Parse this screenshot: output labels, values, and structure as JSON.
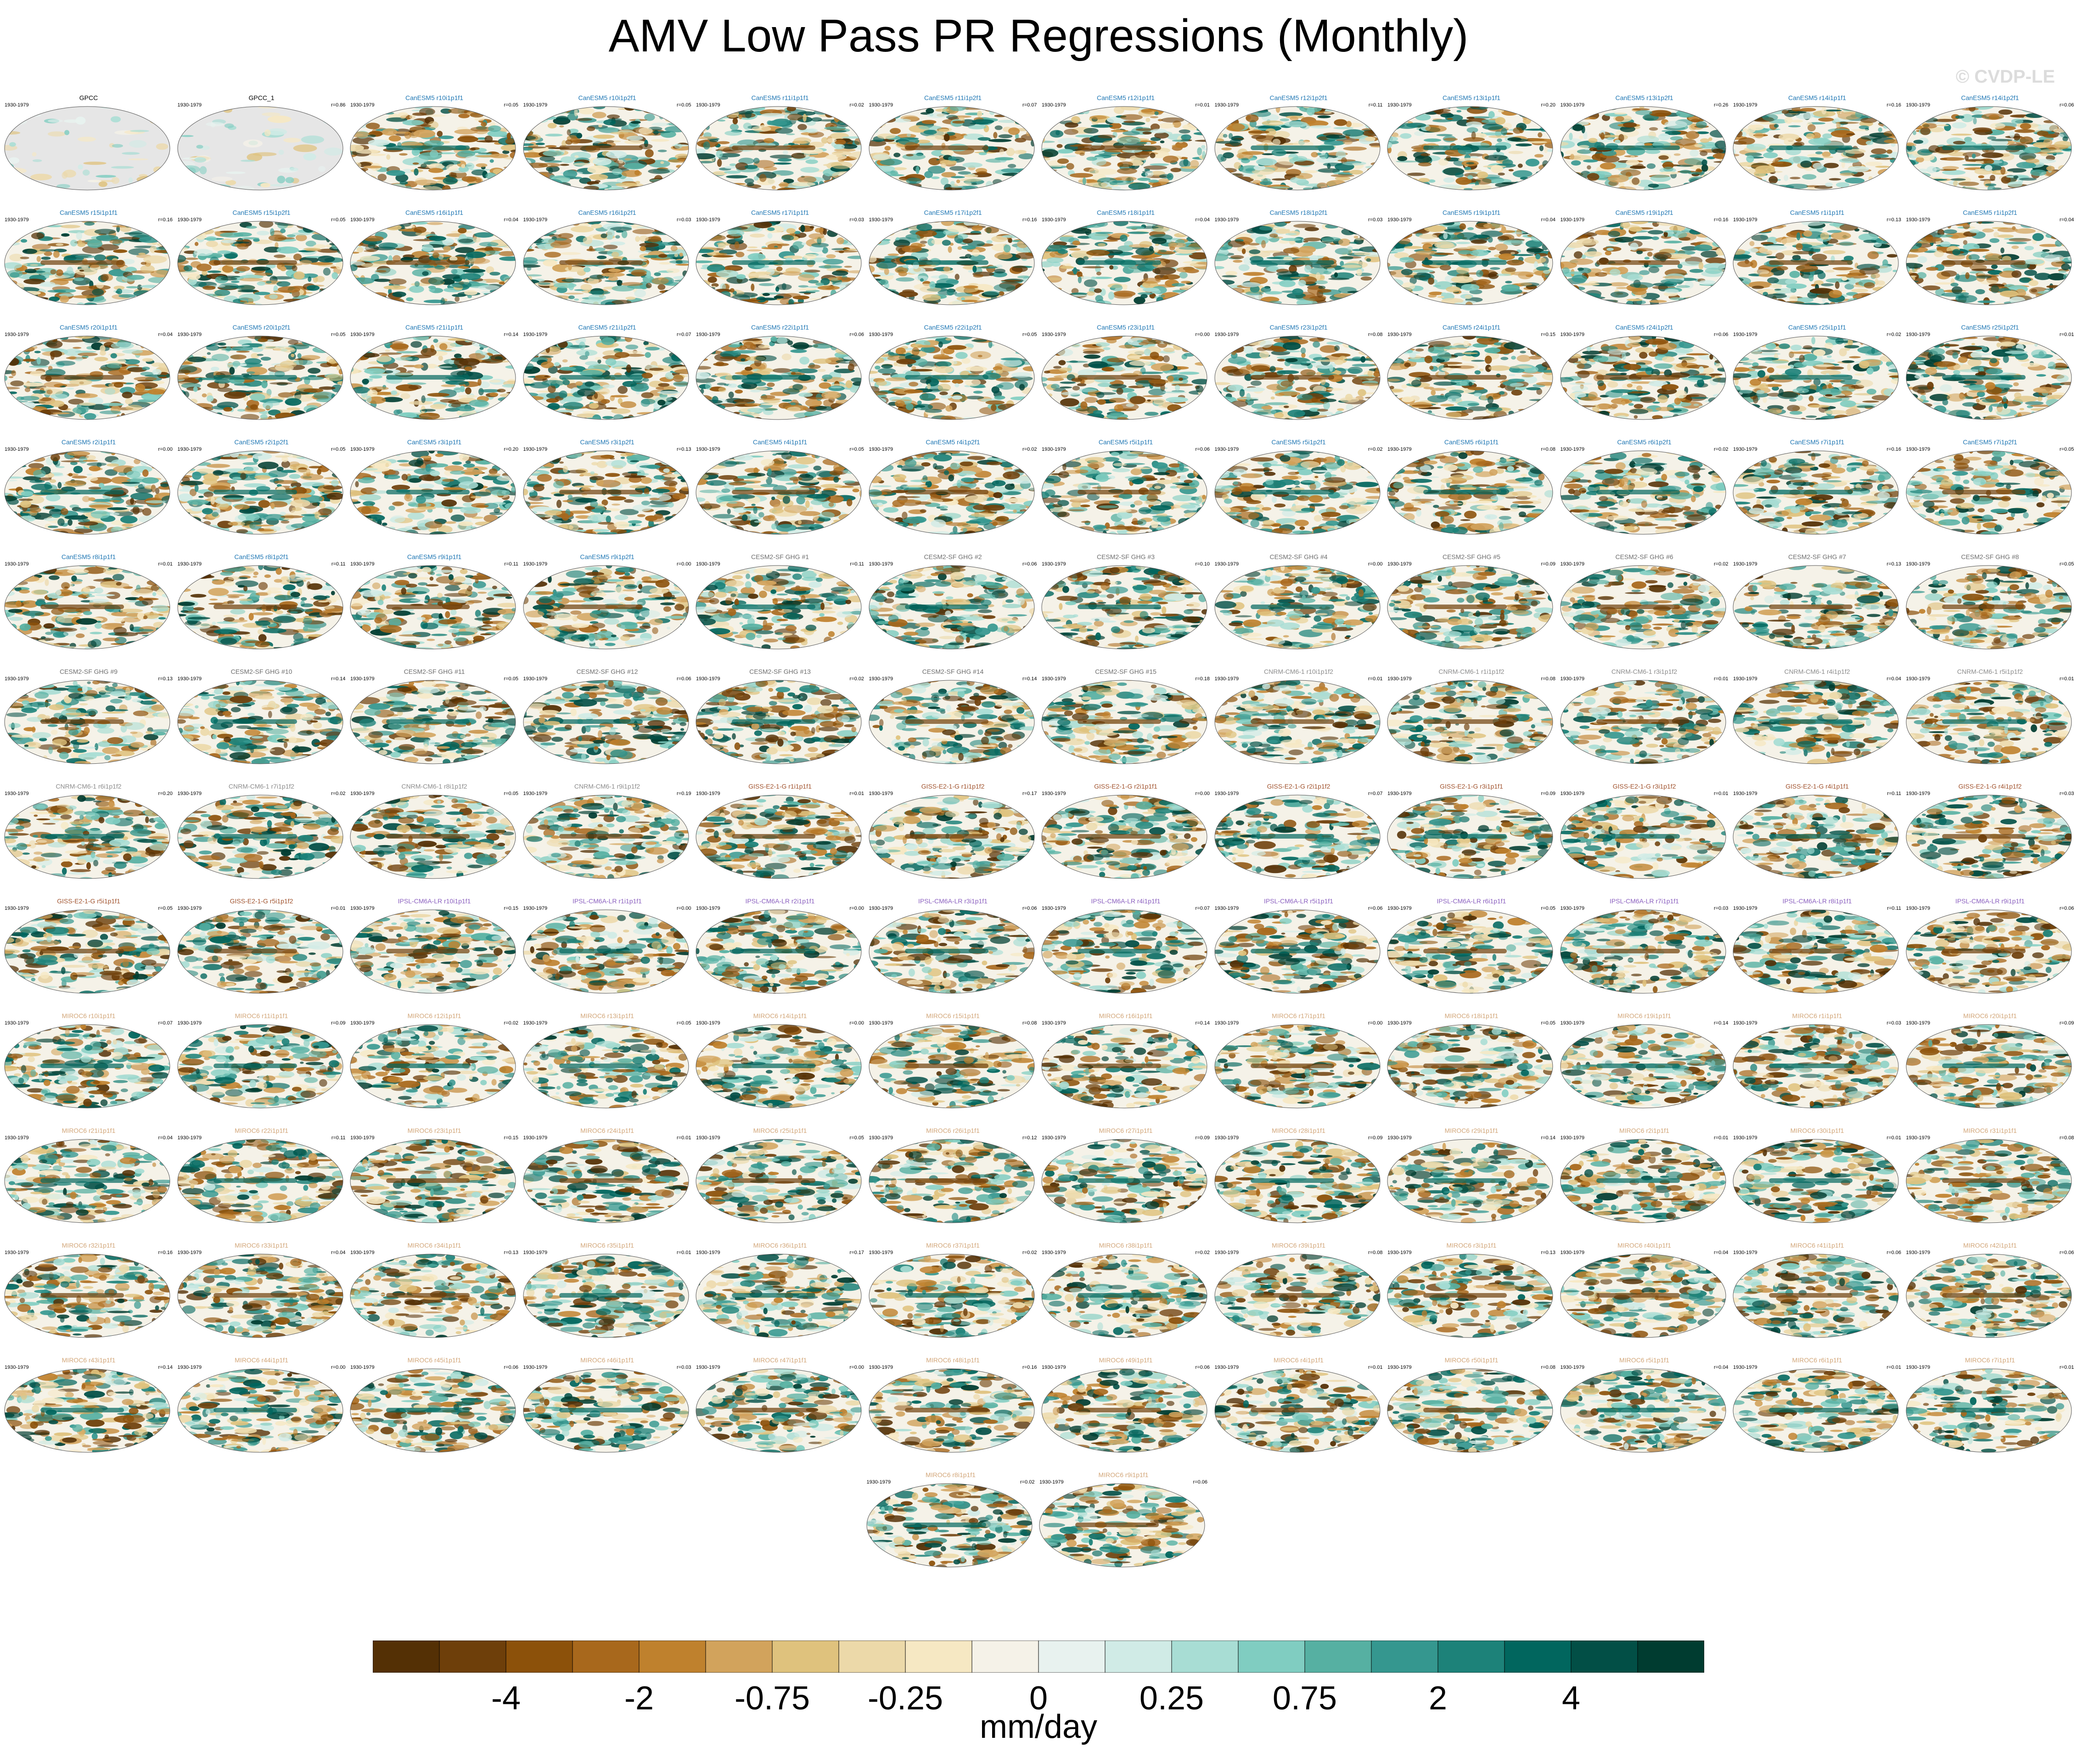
{
  "title": "AMV Low Pass PR Regressions (Monthly)",
  "watermark": "© CVDP-LE",
  "chart_data": {
    "type": "heatmap",
    "description_of_layout": "grid of global map panels, 12 per row, last row centered",
    "period": "1930-1979",
    "panels": [
      {
        "name": "GPCC",
        "r": ""
      },
      {
        "name": "GPCC_1",
        "r": "r=0.86"
      },
      {
        "name": "CanESM5 r10i1p1f1",
        "r": "r=0.05"
      },
      {
        "name": "CanESM5 r10i1p2f1",
        "r": "r=0.05"
      },
      {
        "name": "CanESM5 r11i1p1f1",
        "r": "r=0.02"
      },
      {
        "name": "CanESM5 r11i1p2f1",
        "r": "r=0.07"
      },
      {
        "name": "CanESM5 r12i1p1f1",
        "r": "r=0.01"
      },
      {
        "name": "CanESM5 r12i1p2f1",
        "r": "r=0.11"
      },
      {
        "name": "CanESM5 r13i1p1f1",
        "r": "r=0.20"
      },
      {
        "name": "CanESM5 r13i1p2f1",
        "r": "r=0.26"
      },
      {
        "name": "CanESM5 r14i1p1f1",
        "r": "r=0.16"
      },
      {
        "name": "CanESM5 r14i1p2f1",
        "r": "r=0.06"
      },
      {
        "name": "CanESM5 r15i1p1f1",
        "r": "r=0.16"
      },
      {
        "name": "CanESM5 r15i1p2f1",
        "r": "r=0.05"
      },
      {
        "name": "CanESM5 r16i1p1f1",
        "r": "r=0.04"
      },
      {
        "name": "CanESM5 r16i1p2f1",
        "r": "r=0.03"
      },
      {
        "name": "CanESM5 r17i1p1f1",
        "r": "r=0.03"
      },
      {
        "name": "CanESM5 r17i1p2f1",
        "r": "r=0.16"
      },
      {
        "name": "CanESM5 r18i1p1f1",
        "r": "r=0.04"
      },
      {
        "name": "CanESM5 r18i1p2f1",
        "r": "r=0.03"
      },
      {
        "name": "CanESM5 r19i1p1f1",
        "r": "r=0.04"
      },
      {
        "name": "CanESM5 r19i1p2f1",
        "r": "r=0.16"
      },
      {
        "name": "CanESM5 r1i1p1f1",
        "r": "r=0.13"
      },
      {
        "name": "CanESM5 r1i1p2f1",
        "r": "r=0.04"
      },
      {
        "name": "CanESM5 r20i1p1f1",
        "r": "r=0.04"
      },
      {
        "name": "CanESM5 r20i1p2f1",
        "r": "r=0.05"
      },
      {
        "name": "CanESM5 r21i1p1f1",
        "r": "r=0.14"
      },
      {
        "name": "CanESM5 r21i1p2f1",
        "r": "r=0.07"
      },
      {
        "name": "CanESM5 r22i1p1f1",
        "r": "r=0.06"
      },
      {
        "name": "CanESM5 r22i1p2f1",
        "r": "r=0.05"
      },
      {
        "name": "CanESM5 r23i1p1f1",
        "r": "r=0.00"
      },
      {
        "name": "CanESM5 r23i1p2f1",
        "r": "r=0.08"
      },
      {
        "name": "CanESM5 r24i1p1f1",
        "r": "r=0.15"
      },
      {
        "name": "CanESM5 r24i1p2f1",
        "r": "r=0.06"
      },
      {
        "name": "CanESM5 r25i1p1f1",
        "r": "r=0.02"
      },
      {
        "name": "CanESM5 r25i1p2f1",
        "r": "r=0.01"
      },
      {
        "name": "CanESM5 r2i1p1f1",
        "r": "r=0.00"
      },
      {
        "name": "CanESM5 r2i1p2f1",
        "r": "r=0.05"
      },
      {
        "name": "CanESM5 r3i1p1f1",
        "r": "r=0.20"
      },
      {
        "name": "CanESM5 r3i1p2f1",
        "r": "r=0.13"
      },
      {
        "name": "CanESM5 r4i1p1f1",
        "r": "r=0.05"
      },
      {
        "name": "CanESM5 r4i1p2f1",
        "r": "r=0.02"
      },
      {
        "name": "CanESM5 r5i1p1f1",
        "r": "r=0.06"
      },
      {
        "name": "CanESM5 r5i1p2f1",
        "r": "r=0.02"
      },
      {
        "name": "CanESM5 r6i1p1f1",
        "r": "r=0.08"
      },
      {
        "name": "CanESM5 r6i1p2f1",
        "r": "r=0.02"
      },
      {
        "name": "CanESM5 r7i1p1f1",
        "r": "r=0.16"
      },
      {
        "name": "CanESM5 r7i1p2f1",
        "r": "r=0.05"
      },
      {
        "name": "CanESM5 r8i1p1f1",
        "r": "r=0.01"
      },
      {
        "name": "CanESM5 r8i1p2f1",
        "r": "r=0.11"
      },
      {
        "name": "CanESM5 r9i1p1f1",
        "r": "r=0.11"
      },
      {
        "name": "CanESM5 r9i1p2f1",
        "r": "r=0.00"
      },
      {
        "name": "CESM2-SF GHG #1",
        "r": "r=0.11"
      },
      {
        "name": "CESM2-SF GHG #2",
        "r": "r=0.06"
      },
      {
        "name": "CESM2-SF GHG #3",
        "r": "r=0.10"
      },
      {
        "name": "CESM2-SF GHG #4",
        "r": "r=0.00"
      },
      {
        "name": "CESM2-SF GHG #5",
        "r": "r=0.09"
      },
      {
        "name": "CESM2-SF GHG #6",
        "r": "r=0.02"
      },
      {
        "name": "CESM2-SF GHG #7",
        "r": "r=0.13"
      },
      {
        "name": "CESM2-SF GHG #8",
        "r": "r=0.05"
      },
      {
        "name": "CESM2-SF GHG #9",
        "r": "r=0.13"
      },
      {
        "name": "CESM2-SF GHG #10",
        "r": "r=0.14"
      },
      {
        "name": "CESM2-SF GHG #11",
        "r": "r=0.05"
      },
      {
        "name": "CESM2-SF GHG #12",
        "r": "r=0.06"
      },
      {
        "name": "CESM2-SF GHG #13",
        "r": "r=0.02"
      },
      {
        "name": "CESM2-SF GHG #14",
        "r": "r=0.14"
      },
      {
        "name": "CESM2-SF GHG #15",
        "r": "r=0.18"
      },
      {
        "name": "CNRM-CM6-1 r10i1p1f2",
        "r": "r=0.01"
      },
      {
        "name": "CNRM-CM6-1 r1i1p1f2",
        "r": "r=0.08"
      },
      {
        "name": "CNRM-CM6-1 r3i1p1f2",
        "r": "r=0.01"
      },
      {
        "name": "CNRM-CM6-1 r4i1p1f2",
        "r": "r=0.04"
      },
      {
        "name": "CNRM-CM6-1 r5i1p1f2",
        "r": "r=0.01"
      },
      {
        "name": "CNRM-CM6-1 r6i1p1f2",
        "r": "r=0.20"
      },
      {
        "name": "CNRM-CM6-1 r7i1p1f2",
        "r": "r=0.02"
      },
      {
        "name": "CNRM-CM6-1 r8i1p1f2",
        "r": "r=0.05"
      },
      {
        "name": "CNRM-CM6-1 r9i1p1f2",
        "r": "r=0.19"
      },
      {
        "name": "GISS-E2-1-G r1i1p1f1",
        "r": "r=0.01"
      },
      {
        "name": "GISS-E2-1-G r1i1p1f2",
        "r": "r=0.17"
      },
      {
        "name": "GISS-E2-1-G r2i1p1f1",
        "r": "r=0.00"
      },
      {
        "name": "GISS-E2-1-G r2i1p1f2",
        "r": "r=0.07"
      },
      {
        "name": "GISS-E2-1-G r3i1p1f1",
        "r": "r=0.09"
      },
      {
        "name": "GISS-E2-1-G r3i1p1f2",
        "r": "r=0.01"
      },
      {
        "name": "GISS-E2-1-G r4i1p1f1",
        "r": "r=0.11"
      },
      {
        "name": "GISS-E2-1-G r4i1p1f2",
        "r": "r=0.03"
      },
      {
        "name": "GISS-E2-1-G r5i1p1f1",
        "r": "r=0.05"
      },
      {
        "name": "GISS-E2-1-G r5i1p1f2",
        "r": "r=0.01"
      },
      {
        "name": "IPSL-CM6A-LR r10i1p1f1",
        "r": "r=0.15"
      },
      {
        "name": "IPSL-CM6A-LR r1i1p1f1",
        "r": "r=0.00"
      },
      {
        "name": "IPSL-CM6A-LR r2i1p1f1",
        "r": "r=0.00"
      },
      {
        "name": "IPSL-CM6A-LR r3i1p1f1",
        "r": "r=0.06"
      },
      {
        "name": "IPSL-CM6A-LR r4i1p1f1",
        "r": "r=0.07"
      },
      {
        "name": "IPSL-CM6A-LR r5i1p1f1",
        "r": "r=0.06"
      },
      {
        "name": "IPSL-CM6A-LR r6i1p1f1",
        "r": "r=0.05"
      },
      {
        "name": "IPSL-CM6A-LR r7i1p1f1",
        "r": "r=0.03"
      },
      {
        "name": "IPSL-CM6A-LR r8i1p1f1",
        "r": "r=0.11"
      },
      {
        "name": "IPSL-CM6A-LR r9i1p1f1",
        "r": "r=0.06"
      },
      {
        "name": "MIROC6 r10i1p1f1",
        "r": "r=0.07"
      },
      {
        "name": "MIROC6 r11i1p1f1",
        "r": "r=0.09"
      },
      {
        "name": "MIROC6 r12i1p1f1",
        "r": "r=0.02"
      },
      {
        "name": "MIROC6 r13i1p1f1",
        "r": "r=0.05"
      },
      {
        "name": "MIROC6 r14i1p1f1",
        "r": "r=0.00"
      },
      {
        "name": "MIROC6 r15i1p1f1",
        "r": "r=0.08"
      },
      {
        "name": "MIROC6 r16i1p1f1",
        "r": "r=0.14"
      },
      {
        "name": "MIROC6 r17i1p1f1",
        "r": "r=0.00"
      },
      {
        "name": "MIROC6 r18i1p1f1",
        "r": "r=0.05"
      },
      {
        "name": "MIROC6 r19i1p1f1",
        "r": "r=0.14"
      },
      {
        "name": "MIROC6 r1i1p1f1",
        "r": "r=0.03"
      },
      {
        "name": "MIROC6 r20i1p1f1",
        "r": "r=0.09"
      },
      {
        "name": "MIROC6 r21i1p1f1",
        "r": "r=0.04"
      },
      {
        "name": "MIROC6 r22i1p1f1",
        "r": "r=0.11"
      },
      {
        "name": "MIROC6 r23i1p1f1",
        "r": "r=0.15"
      },
      {
        "name": "MIROC6 r24i1p1f1",
        "r": "r=0.01"
      },
      {
        "name": "MIROC6 r25i1p1f1",
        "r": "r=0.05"
      },
      {
        "name": "MIROC6 r26i1p1f1",
        "r": "r=0.12"
      },
      {
        "name": "MIROC6 r27i1p1f1",
        "r": "r=0.09"
      },
      {
        "name": "MIROC6 r28i1p1f1",
        "r": "r=0.09"
      },
      {
        "name": "MIROC6 r29i1p1f1",
        "r": "r=0.14"
      },
      {
        "name": "MIROC6 r2i1p1f1",
        "r": "r=0.01"
      },
      {
        "name": "MIROC6 r30i1p1f1",
        "r": "r=0.01"
      },
      {
        "name": "MIROC6 r31i1p1f1",
        "r": "r=0.08"
      },
      {
        "name": "MIROC6 r32i1p1f1",
        "r": "r=0.16"
      },
      {
        "name": "MIROC6 r33i1p1f1",
        "r": "r=0.04"
      },
      {
        "name": "MIROC6 r34i1p1f1",
        "r": "r=0.13"
      },
      {
        "name": "MIROC6 r35i1p1f1",
        "r": "r=0.01"
      },
      {
        "name": "MIROC6 r36i1p1f1",
        "r": "r=0.17"
      },
      {
        "name": "MIROC6 r37i1p1f1",
        "r": "r=0.02"
      },
      {
        "name": "MIROC6 r38i1p1f1",
        "r": "r=0.02"
      },
      {
        "name": "MIROC6 r39i1p1f1",
        "r": "r=0.08"
      },
      {
        "name": "MIROC6 r3i1p1f1",
        "r": "r=0.13"
      },
      {
        "name": "MIROC6 r40i1p1f1",
        "r": "r=0.04"
      },
      {
        "name": "MIROC6 r41i1p1f1",
        "r": "r=0.06"
      },
      {
        "name": "MIROC6 r42i1p1f1",
        "r": "r=0.06"
      },
      {
        "name": "MIROC6 r43i1p1f1",
        "r": "r=0.14"
      },
      {
        "name": "MIROC6 r44i1p1f1",
        "r": "r=0.00"
      },
      {
        "name": "MIROC6 r45i1p1f1",
        "r": "r=0.06"
      },
      {
        "name": "MIROC6 r46i1p1f1",
        "r": "r=0.03"
      },
      {
        "name": "MIROC6 r47i1p1f1",
        "r": "r=0.00"
      },
      {
        "name": "MIROC6 r48i1p1f1",
        "r": "r=0.16"
      },
      {
        "name": "MIROC6 r49i1p1f1",
        "r": "r=0.06"
      },
      {
        "name": "MIROC6 r4i1p1f1",
        "r": "r=0.01"
      },
      {
        "name": "MIROC6 r50i1p1f1",
        "r": "r=0.08"
      },
      {
        "name": "MIROC6 r5i1p1f1",
        "r": "r=0.04"
      },
      {
        "name": "MIROC6 r6i1p1f1",
        "r": "r=0.01"
      },
      {
        "name": "MIROC6 r7i1p1f1",
        "r": "r=0.01"
      },
      {
        "name": "MIROC6 r8i1p1f1",
        "r": "r=0.02"
      },
      {
        "name": "MIROC6 r9i1p1f1",
        "r": "r=0.06"
      }
    ],
    "model_colors": {
      "GPCC": "#000000",
      "CanESM5": "#1f77b4",
      "CESM2-SF": "#6e6e6e",
      "CNRM-CM6-1": "#8c8c8c",
      "GISS-E2-1-G": "#a0522d",
      "IPSL-CM6A-LR": "#8a5fbf",
      "MIROC6": "#d2a679"
    },
    "colorbar": {
      "colors": [
        "#543005",
        "#6e3f0a",
        "#8c510a",
        "#a8681c",
        "#bf812d",
        "#d2a35c",
        "#dfc27d",
        "#ecd9a9",
        "#f6e8c3",
        "#f5f2e8",
        "#e8f2ef",
        "#d0ebe6",
        "#a8ddd4",
        "#80cdc1",
        "#56b0a2",
        "#35978f",
        "#1d8279",
        "#01665e",
        "#024f46",
        "#003c30"
      ],
      "tick_labels": [
        "-4",
        "-2",
        "-0.75",
        "-0.25",
        "0",
        "0.25",
        "0.75",
        "2",
        "4"
      ],
      "units": "mm/day"
    }
  }
}
